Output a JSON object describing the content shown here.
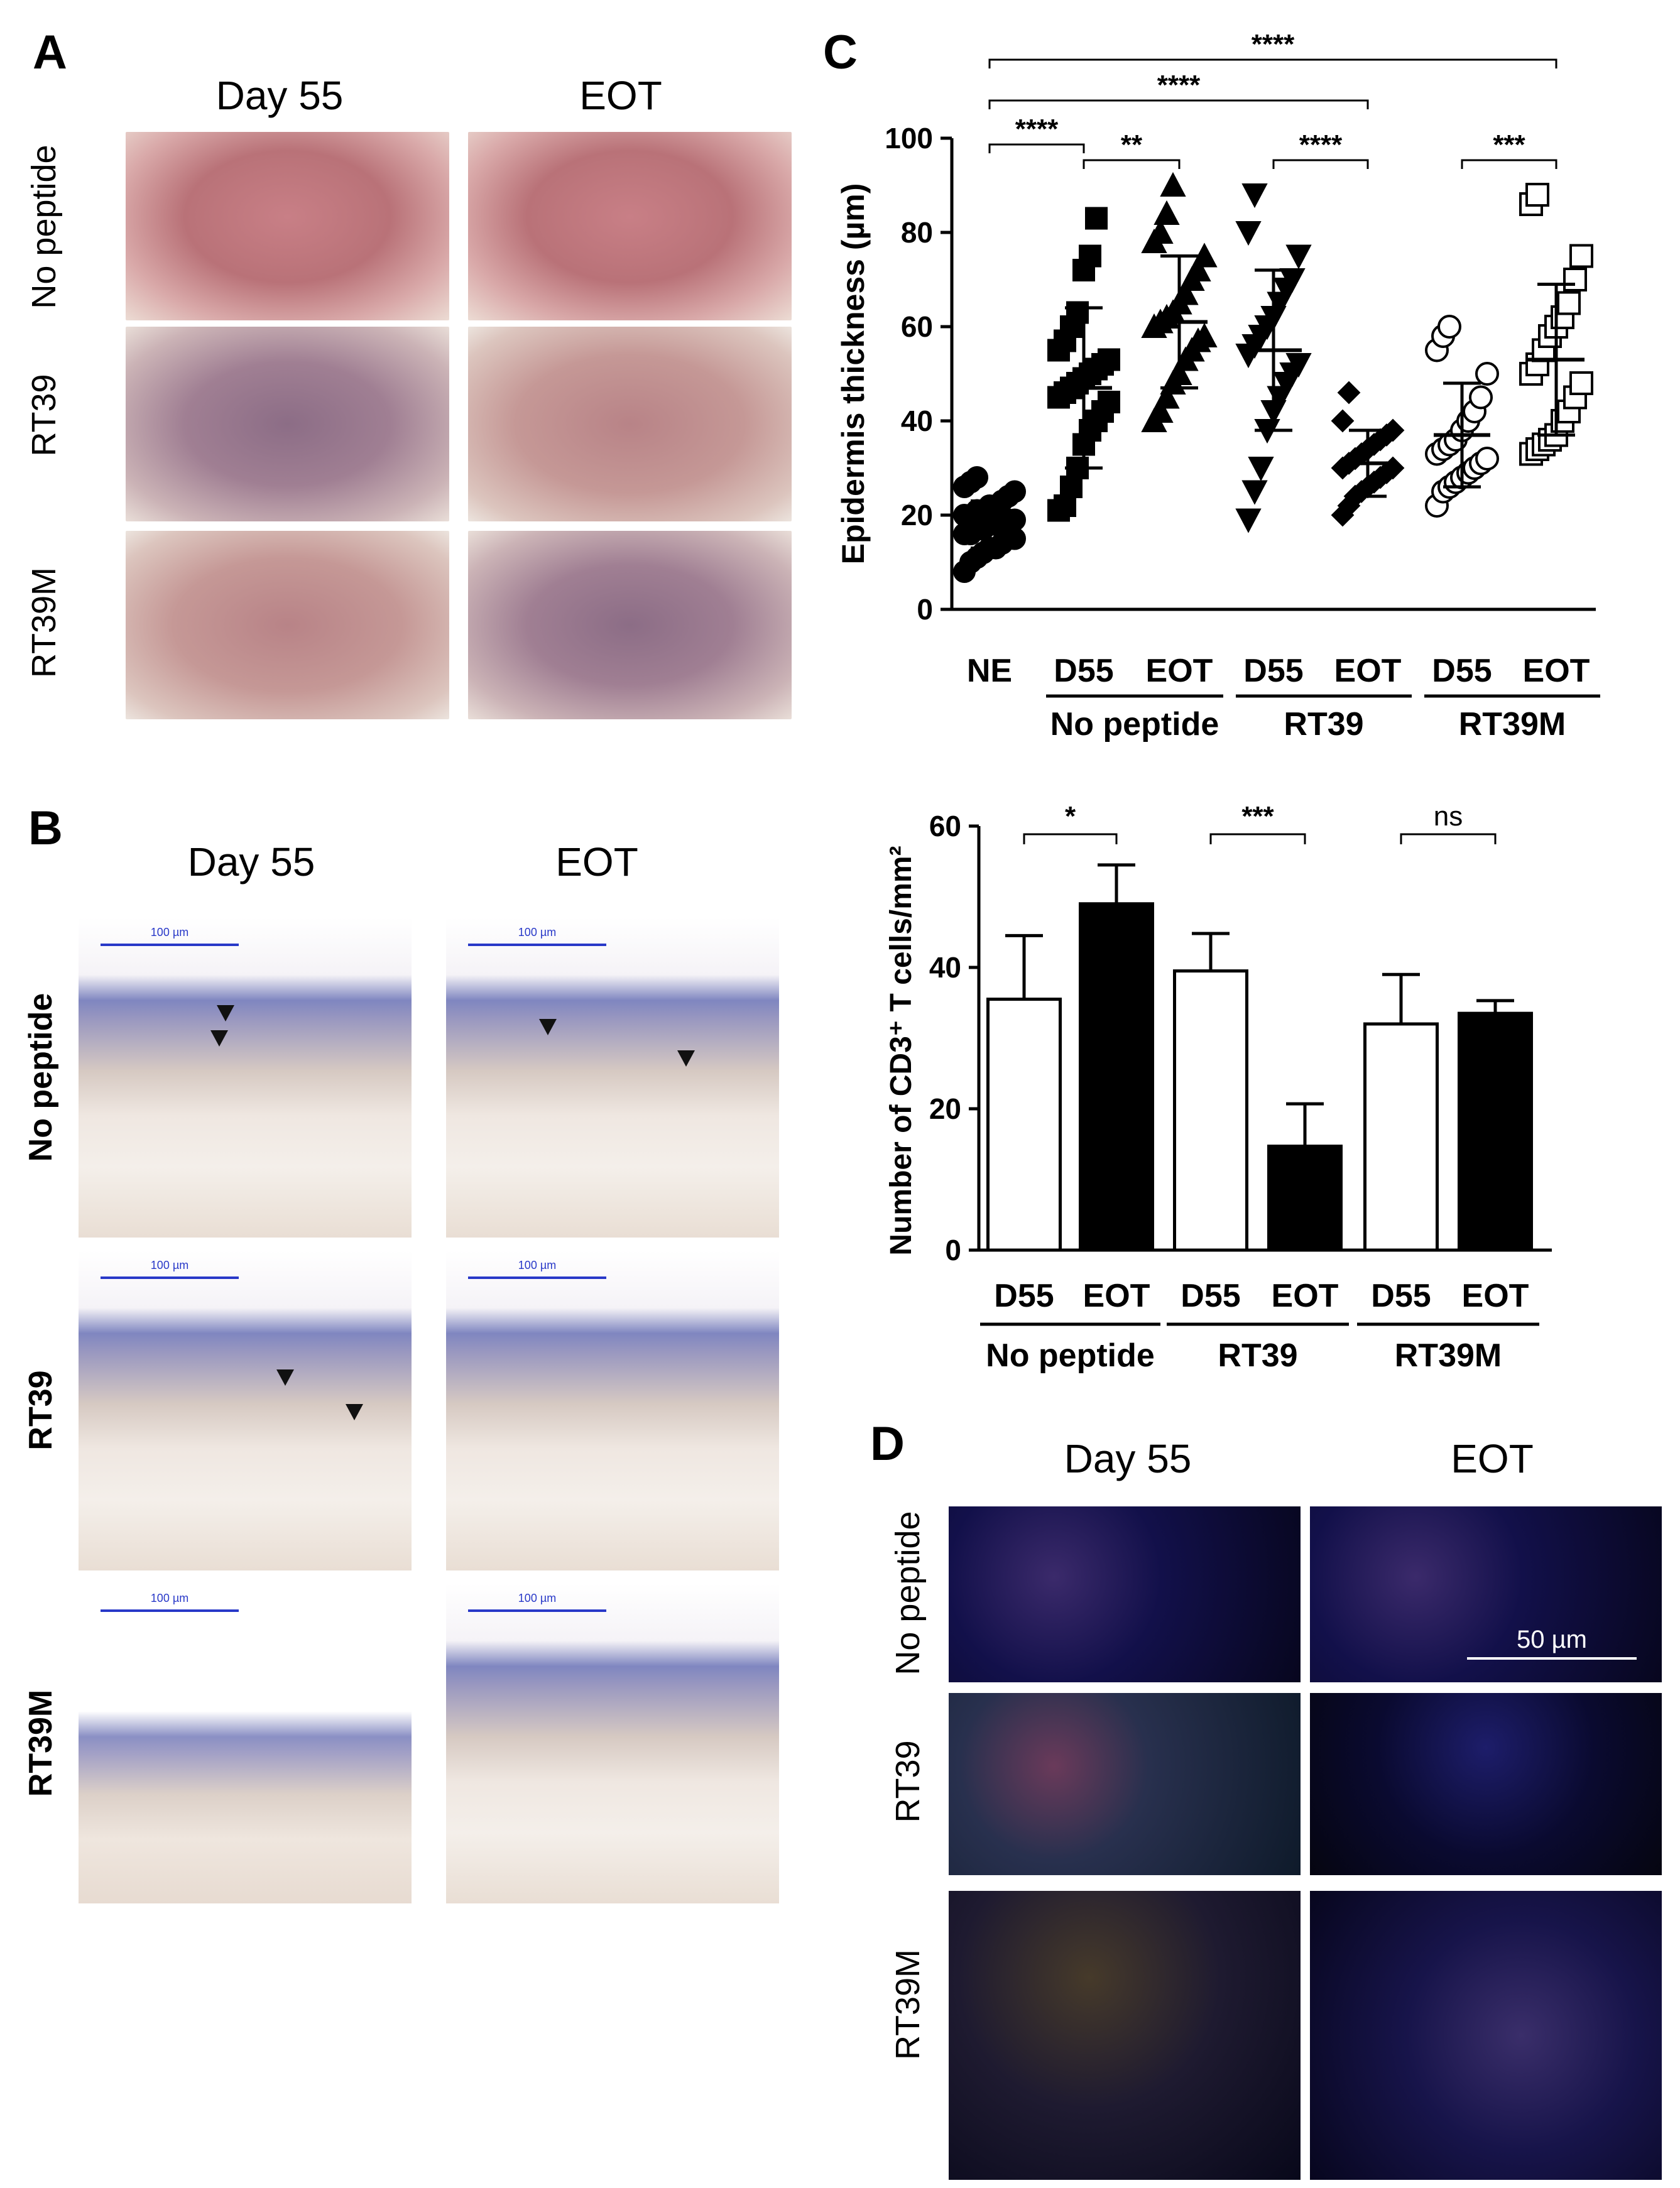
{
  "panels": {
    "a": {
      "letter": "A",
      "columns": [
        "Day 55",
        "EOT"
      ],
      "rows": [
        "No peptide",
        "RT39",
        "RT39M"
      ]
    },
    "b": {
      "letter": "B",
      "columns": [
        "Day 55",
        "EOT"
      ],
      "rows": [
        "No peptide",
        "RT39",
        "RT39M"
      ],
      "scale_label": "100 µm"
    },
    "c": {
      "letter": "C"
    },
    "d": {
      "letter": "D",
      "columns": [
        "Day 55",
        "EOT"
      ],
      "rows": [
        "No peptide",
        "RT39",
        "RT39M"
      ],
      "scale_label": "50 µm"
    }
  },
  "chart_data": [
    {
      "type": "scatter",
      "ylabel": "Epidermis thickness (µm)",
      "ylim": [
        0,
        100
      ],
      "yticks": [
        0,
        20,
        40,
        60,
        80,
        100
      ],
      "categories": [
        "NE",
        "D55",
        "EOT",
        "D55",
        "EOT",
        "D55",
        "EOT"
      ],
      "groups": [
        {
          "label": "No peptide",
          "span": [
            1,
            2
          ]
        },
        {
          "label": "RT39",
          "span": [
            3,
            4
          ]
        },
        {
          "label": "RT39M",
          "span": [
            5,
            6
          ]
        }
      ],
      "series": [
        {
          "marker": "circle-filled",
          "mean": 18,
          "sd": 5,
          "values": [
            8,
            10,
            11,
            12,
            13,
            13,
            14,
            15,
            15,
            16,
            16,
            17,
            17,
            18,
            18,
            18,
            19,
            19,
            20,
            20,
            21,
            21,
            22,
            22,
            23,
            24,
            25,
            26,
            27,
            28
          ]
        },
        {
          "marker": "square-filled",
          "mean": 47,
          "sd": 17,
          "values": [
            21,
            22,
            26,
            30,
            35,
            38,
            40,
            42,
            44,
            45,
            46,
            47,
            48,
            49,
            50,
            51,
            52,
            53,
            55,
            57,
            60,
            63,
            72,
            75,
            83
          ]
        },
        {
          "marker": "triangle-up-filled",
          "mean": 61,
          "sd": 14,
          "values": [
            40,
            42,
            45,
            48,
            50,
            53,
            55,
            57,
            58,
            60,
            61,
            62,
            63,
            65,
            67,
            70,
            72,
            75,
            78,
            80,
            84,
            90
          ]
        },
        {
          "marker": "triangle-down-filled",
          "mean": 55,
          "sd": 17,
          "values": [
            19,
            25,
            30,
            38,
            42,
            45,
            48,
            50,
            52,
            54,
            56,
            58,
            60,
            62,
            65,
            68,
            70,
            75,
            80,
            88
          ]
        },
        {
          "marker": "diamond-filled",
          "mean": 31,
          "sd": 7,
          "values": [
            20,
            22,
            24,
            25,
            26,
            27,
            28,
            29,
            30,
            30,
            31,
            32,
            33,
            34,
            35,
            36,
            37,
            38,
            40,
            46
          ]
        },
        {
          "marker": "circle-open",
          "mean": 37,
          "sd": 11,
          "values": [
            22,
            25,
            26,
            27,
            28,
            29,
            30,
            31,
            32,
            33,
            34,
            35,
            36,
            38,
            40,
            42,
            45,
            50,
            55,
            58,
            60
          ]
        },
        {
          "marker": "square-open",
          "mean": 53,
          "sd": 16,
          "values": [
            33,
            34,
            35,
            36,
            37,
            40,
            42,
            45,
            48,
            50,
            52,
            55,
            58,
            60,
            62,
            65,
            70,
            75,
            86,
            88
          ]
        }
      ],
      "significance": [
        {
          "from": 0,
          "to": 6,
          "label": "****"
        },
        {
          "from": 0,
          "to": 4,
          "label": "****"
        },
        {
          "from": 0,
          "to": 1,
          "label": "****"
        },
        {
          "from": 1,
          "to": 2,
          "label": "**"
        },
        {
          "from": 3,
          "to": 4,
          "label": "****"
        },
        {
          "from": 5,
          "to": 6,
          "label": "***"
        }
      ]
    },
    {
      "type": "bar",
      "ylabel": "Number of CD3⁺ T cells/mm²",
      "ylim": [
        0,
        60
      ],
      "yticks": [
        0,
        20,
        40,
        60
      ],
      "categories": [
        "D55",
        "EOT",
        "D55",
        "EOT",
        "D55",
        "EOT"
      ],
      "groups": [
        {
          "label": "No peptide",
          "span": [
            0,
            1
          ]
        },
        {
          "label": "RT39",
          "span": [
            2,
            3
          ]
        },
        {
          "label": "RT39M",
          "span": [
            4,
            5
          ]
        }
      ],
      "values": [
        35.5,
        49,
        39.5,
        14.7,
        32,
        33.5
      ],
      "errors": [
        9,
        5.5,
        5.3,
        6,
        7,
        1.8
      ],
      "fills": [
        "#ffffff",
        "#000000",
        "#ffffff",
        "#000000",
        "#ffffff",
        "#000000"
      ],
      "significance": [
        {
          "from": 0,
          "to": 1,
          "label": "*"
        },
        {
          "from": 2,
          "to": 3,
          "label": "***"
        },
        {
          "from": 4,
          "to": 5,
          "label": "ns"
        }
      ]
    }
  ]
}
